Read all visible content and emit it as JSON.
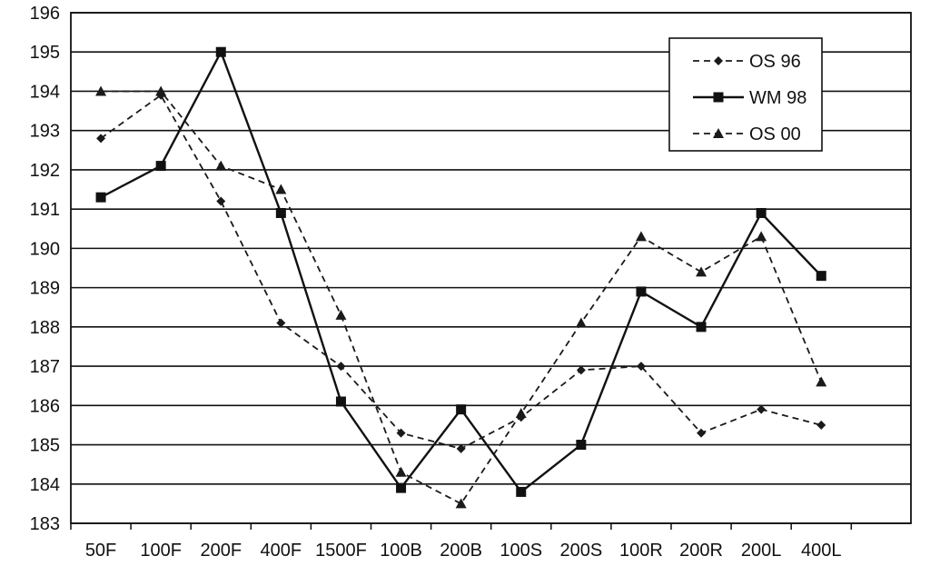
{
  "chart_data": {
    "type": "line",
    "categories": [
      "50F",
      "100F",
      "200F",
      "400F",
      "1500F",
      "100B",
      "200B",
      "100S",
      "200S",
      "100R",
      "200R",
      "200L",
      "400L"
    ],
    "series": [
      {
        "name": "OS 96",
        "line_style": "dashed",
        "marker": "diamond",
        "color": "#1a1a1a",
        "values": [
          192.8,
          193.9,
          191.2,
          188.1,
          187.0,
          185.3,
          184.9,
          185.7,
          186.9,
          187.0,
          185.3,
          185.9,
          185.5
        ]
      },
      {
        "name": "WM 98",
        "line_style": "solid",
        "marker": "square",
        "color": "#111111",
        "values": [
          191.3,
          192.1,
          195.0,
          190.9,
          186.1,
          183.9,
          185.9,
          183.8,
          185.0,
          188.9,
          188.0,
          190.9,
          189.3
        ]
      },
      {
        "name": "OS 00",
        "line_style": "dashed",
        "marker": "triangle",
        "color": "#1a1a1a",
        "values": [
          194.0,
          194.0,
          192.1,
          191.5,
          188.3,
          184.3,
          183.5,
          185.8,
          188.1,
          190.3,
          189.4,
          190.3,
          186.6
        ]
      }
    ],
    "yticks": [
      183,
      184,
      185,
      186,
      187,
      188,
      189,
      190,
      191,
      192,
      193,
      194,
      195,
      196
    ],
    "ylim": [
      183,
      196
    ],
    "title": "",
    "xlabel": "",
    "ylabel": "",
    "grid": "horizontal",
    "legend_position": "top-right"
  }
}
